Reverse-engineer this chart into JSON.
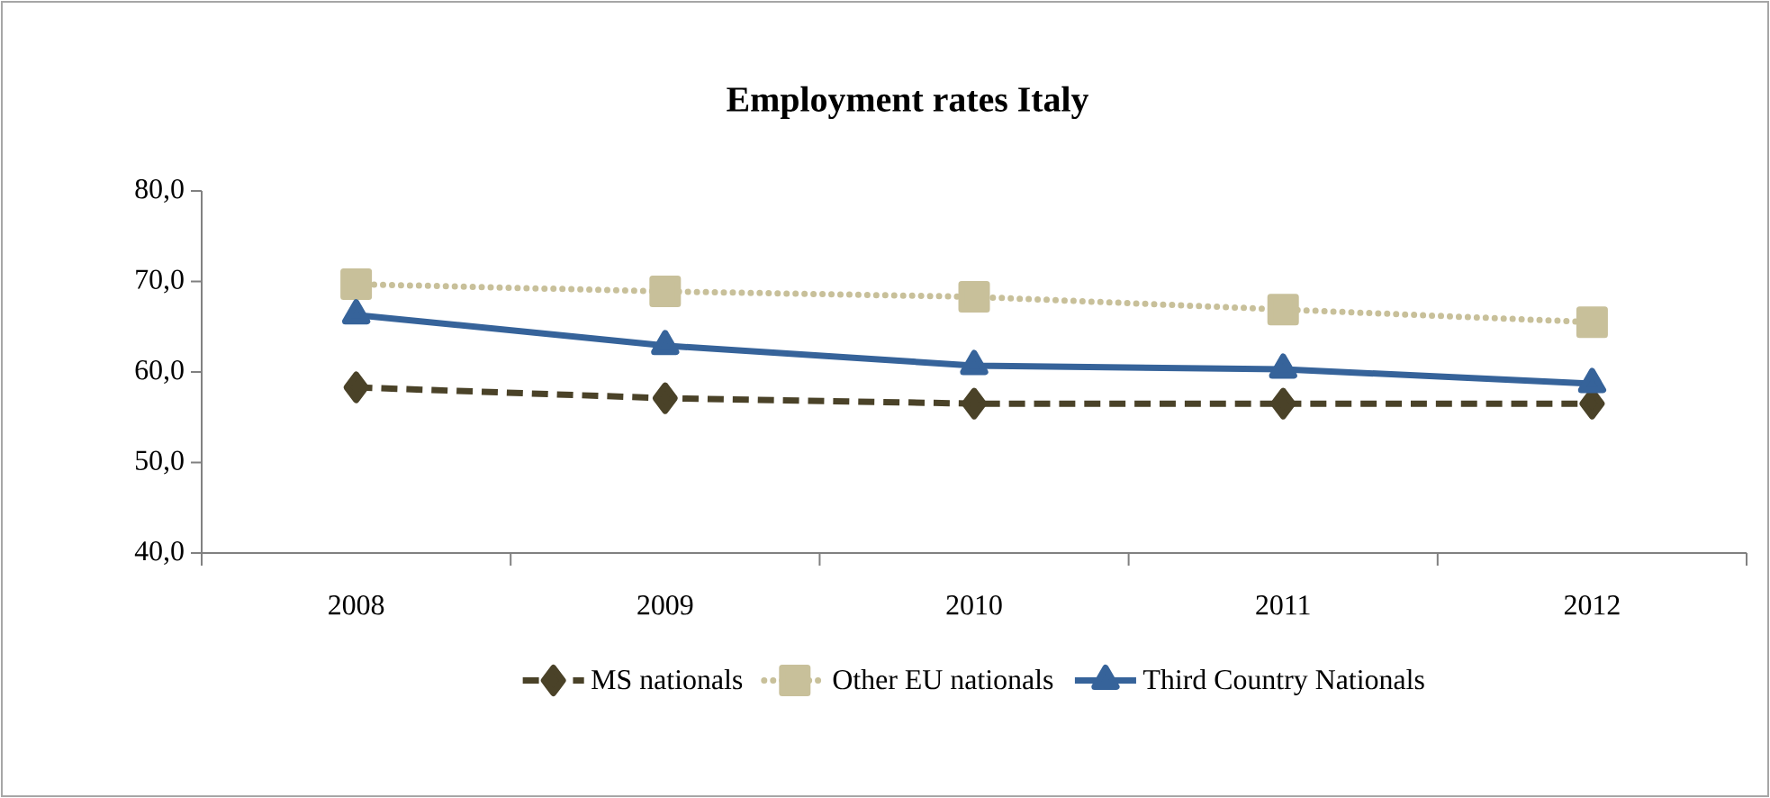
{
  "chart_data": {
    "type": "line",
    "title": "Employment rates Italy",
    "categories": [
      "2008",
      "2009",
      "2010",
      "2011",
      "2012"
    ],
    "series": [
      {
        "name": "MS nationals",
        "color": "#4a4228",
        "marker": "diamond",
        "line_style": "dashed",
        "values": [
          58.3,
          57.1,
          56.5,
          56.5,
          56.5
        ]
      },
      {
        "name": "Other EU nationals",
        "color": "#c8c09a",
        "marker": "square",
        "line_style": "dotted",
        "values": [
          69.7,
          68.9,
          68.3,
          66.9,
          65.5
        ]
      },
      {
        "name": "Third Country Nationals",
        "color": "#36639a",
        "marker": "triangle",
        "line_style": "solid",
        "values": [
          66.3,
          62.9,
          60.7,
          60.3,
          58.7
        ]
      }
    ],
    "ylim": [
      40,
      80
    ],
    "yticks": [
      {
        "value": 40,
        "label": "40,0"
      },
      {
        "value": 50,
        "label": "50,0"
      },
      {
        "value": 60,
        "label": "60,0"
      },
      {
        "value": 70,
        "label": "70,0"
      },
      {
        "value": 80,
        "label": "80,0"
      }
    ],
    "grid": false,
    "legend": "bottom"
  }
}
